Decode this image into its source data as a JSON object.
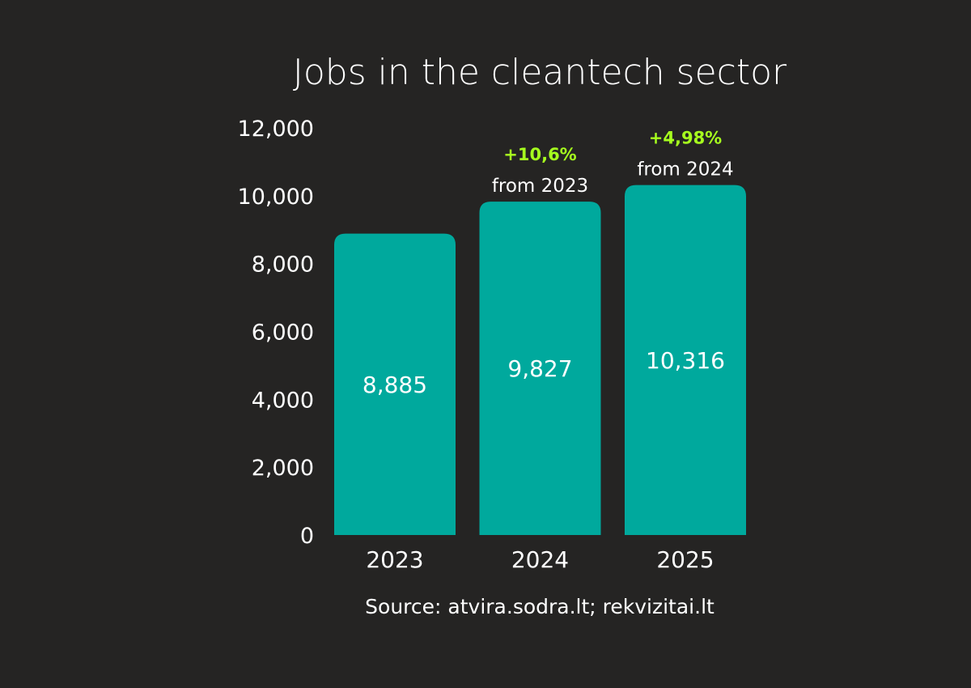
{
  "colors": {
    "background": "#252423",
    "bar": "#00a99d",
    "highlight": "#a6ff1e",
    "text": "#ffffff"
  },
  "chart_data": {
    "type": "bar",
    "title": "Jobs in the cleantech sector",
    "categories": [
      "2023",
      "2024",
      "2025"
    ],
    "values": [
      8885,
      9827,
      10316
    ],
    "value_labels": [
      "8,885",
      "9,827",
      "10,316"
    ],
    "ylim": [
      0,
      12000
    ],
    "yticks": [
      0,
      2000,
      4000,
      6000,
      8000,
      10000,
      12000
    ],
    "ytick_labels": [
      "0",
      "2,000",
      "4,000",
      "6,000",
      "8,000",
      "10,000",
      "12,000"
    ],
    "grid": false,
    "annotations": [
      null,
      {
        "change": "+10,6%",
        "note": "from 2023"
      },
      {
        "change": "+4,98%",
        "note": "from 2024"
      }
    ],
    "source": "Source: atvira.sodra.lt; rekvizitai.lt"
  }
}
